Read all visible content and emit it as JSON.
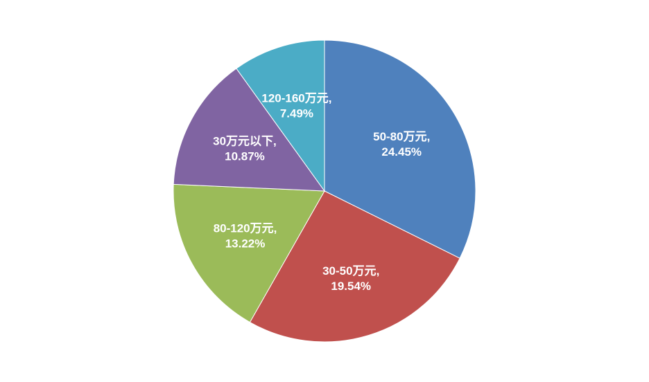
{
  "chart_data": {
    "type": "pie",
    "title": "",
    "start_angle_deg": 0,
    "direction": "clockwise",
    "legend": "none",
    "slices": [
      {
        "label": "50-80万元",
        "value": 24.45,
        "display": "24.45%",
        "color": "#4F81BD"
      },
      {
        "label": "30-50万元",
        "value": 19.54,
        "display": "19.54%",
        "color": "#C0504D"
      },
      {
        "label": "80-120万元",
        "value": 13.22,
        "display": "13.22%",
        "color": "#9BBB59"
      },
      {
        "label": "30万元以下",
        "value": 10.87,
        "display": "10.87%",
        "color": "#8064A2"
      },
      {
        "label": "120-160万元",
        "value": 7.49,
        "display": "7.49%",
        "color": "#4BACC6"
      }
    ]
  }
}
